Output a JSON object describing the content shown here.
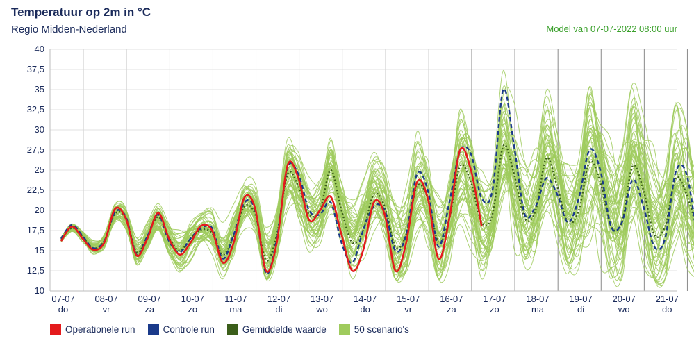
{
  "header": {
    "title": "Temperatuur op 2m in °C",
    "subtitle": "Regio Midden-Nederland",
    "model": "Model van 07-07-2022 08:00 uur"
  },
  "legend": [
    {
      "label": "Operationele run",
      "color": "#e41a1c"
    },
    {
      "label": "Controle run",
      "color": "#1a3a8a"
    },
    {
      "label": "Gemiddelde waarde",
      "color": "#3b5e1a"
    },
    {
      "label": "50 scenario's",
      "color": "#9fcb5d"
    }
  ],
  "chart_data": {
    "type": "line",
    "ylim": [
      10,
      40
    ],
    "yticks": [
      "10",
      "12,5",
      "15",
      "17,5",
      "20",
      "22,5",
      "25",
      "27,5",
      "30",
      "32,5",
      "35",
      "37,5",
      "40"
    ],
    "days": [
      {
        "date": "07-07",
        "day": "do"
      },
      {
        "date": "08-07",
        "day": "vr"
      },
      {
        "date": "09-07",
        "day": "za"
      },
      {
        "date": "10-07",
        "day": "zo"
      },
      {
        "date": "11-07",
        "day": "ma"
      },
      {
        "date": "12-07",
        "day": "di"
      },
      {
        "date": "13-07",
        "day": "wo"
      },
      {
        "date": "14-07",
        "day": "do"
      },
      {
        "date": "15-07",
        "day": "vr"
      },
      {
        "date": "16-07",
        "day": "za"
      },
      {
        "date": "17-07",
        "day": "zo"
      },
      {
        "date": "18-07",
        "day": "ma"
      },
      {
        "date": "19-07",
        "day": "di"
      },
      {
        "date": "20-07",
        "day": "wo"
      },
      {
        "date": "21-07",
        "day": "do"
      }
    ],
    "series": [
      {
        "name": "Operationele run",
        "color": "#e41a1c",
        "style": "solid",
        "values": [
          16.2,
          18.0,
          16.5,
          15.1,
          16.0,
          20.2,
          19.0,
          14.4,
          16.5,
          19.7,
          16.5,
          14.5,
          16.0,
          18.1,
          17.5,
          13.5,
          16.0,
          21.6,
          20.2,
          12.5,
          16.0,
          25.6,
          24.0,
          18.8,
          20.0,
          21.7,
          17.0,
          12.5,
          15.0,
          21.0,
          19.5,
          12.5,
          16.0,
          23.5,
          21.5,
          14.0,
          19.0,
          27.5,
          25.0,
          18.0
        ]
      },
      {
        "name": "Controle run",
        "color": "#1a3a8a",
        "style": "dash",
        "values": [
          16.5,
          18.2,
          16.8,
          15.3,
          16.2,
          19.8,
          19.2,
          14.5,
          16.8,
          19.5,
          16.2,
          14.8,
          16.5,
          17.8,
          17.8,
          14.0,
          17.0,
          21.0,
          20.0,
          12.2,
          16.5,
          25.3,
          24.5,
          20.0,
          19.5,
          21.0,
          16.0,
          13.5,
          17.5,
          20.5,
          20.0,
          15.0,
          17.0,
          24.5,
          22.5,
          15.5,
          21.0,
          27.4,
          27.0,
          21.5,
          22.5,
          35.0,
          28.0,
          19.5,
          20.5,
          24.0,
          22.0,
          18.5,
          21.5,
          27.5,
          25.0,
          18.0,
          18.5,
          23.8,
          20.5,
          15.5,
          16.5,
          24.8,
          24.5,
          16.5
        ]
      },
      {
        "name": "Gemiddelde waarde",
        "color": "#3b5e1a",
        "style": "dot",
        "values": [
          16.4,
          17.8,
          16.7,
          15.3,
          16.2,
          19.6,
          19.0,
          14.8,
          16.8,
          19.2,
          16.6,
          15.0,
          16.5,
          17.6,
          17.2,
          14.5,
          16.8,
          20.5,
          19.5,
          13.8,
          17.0,
          24.5,
          23.0,
          19.5,
          20.0,
          25.0,
          20.0,
          16.0,
          17.5,
          22.0,
          20.5,
          15.5,
          17.0,
          23.0,
          21.5,
          16.0,
          19.0,
          25.5,
          23.5,
          18.5,
          19.5,
          28.0,
          24.5,
          19.0,
          20.0,
          26.5,
          23.0,
          18.5,
          20.0,
          26.0,
          23.5,
          18.0,
          18.5,
          25.5,
          22.5,
          17.0,
          18.0,
          24.0,
          22.0,
          17.5
        ]
      }
    ],
    "scenarios": 50
  }
}
